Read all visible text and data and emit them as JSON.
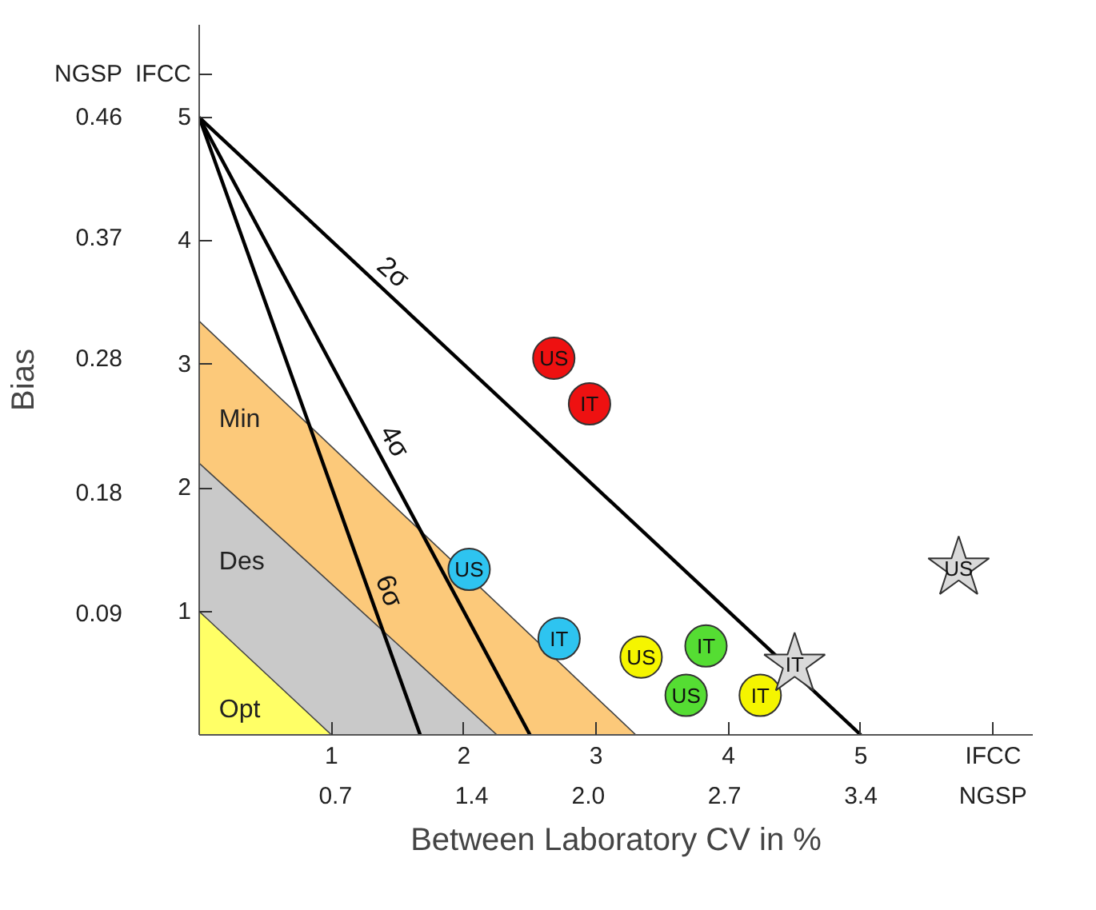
{
  "chart_data": {
    "type": "scatter",
    "xlabel": "Between Laboratory CV in %",
    "y2label": "Bias",
    "xlim": [
      0,
      6.3
    ],
    "ylim": [
      0,
      5.75
    ],
    "xticks": [
      1,
      2,
      3,
      4,
      5,
      {
        "value": 6,
        "label": "IFCC"
      }
    ],
    "x2lim": [
      0,
      4.284
    ],
    "x2ticks": [
      0.7,
      1.4,
      {
        "value": 2.0,
        "label": "2.0"
      },
      2.7,
      3.4,
      {
        "value": 4.08,
        "label": "NGSP"
      }
    ],
    "yticks": [
      1,
      2,
      3,
      4,
      5,
      {
        "value": 5.35,
        "label": "IFCC"
      }
    ],
    "y2lim": [
      0,
      0.529
    ],
    "y2ticks": [
      0.09,
      0.18,
      0.28,
      0.37,
      0.46,
      {
        "value": 0.492,
        "label": "NGSP"
      }
    ],
    "grid": false,
    "legend": false,
    "series": [
      {
        "type": "area",
        "name": "Min",
        "color": "#fcc97a",
        "x": [
          0,
          3.3
        ],
        "values": [
          3.35,
          0
        ]
      },
      {
        "type": "area",
        "name": "Des",
        "color": "#c9c9c9",
        "x": [
          0,
          2.25
        ],
        "values": [
          2.2,
          0
        ]
      },
      {
        "type": "area",
        "name": "Opt",
        "color": "#ffff66",
        "x": [
          0,
          1
        ],
        "values": [
          1,
          0
        ]
      },
      {
        "type": "line",
        "color": "#000000",
        "x": [
          0,
          5
        ],
        "values": [
          5,
          0
        ]
      },
      {
        "type": "line",
        "color": "#000000",
        "x": [
          0,
          2.5
        ],
        "values": [
          5,
          0
        ]
      },
      {
        "type": "line",
        "color": "#000000",
        "x": [
          0,
          1.67
        ],
        "values": [
          5,
          0
        ]
      },
      {
        "marker": "circle",
        "color": "#ee1111",
        "x": [
          2.68,
          2.95
        ],
        "values": [
          3.05,
          2.68
        ]
      },
      {
        "marker": "circle",
        "color": "#2ec4f0",
        "x": [
          2.04,
          2.72
        ],
        "values": [
          1.34,
          0.78
        ]
      },
      {
        "marker": "circle",
        "color": "#f5f500",
        "x": [
          3.34,
          4.24
        ],
        "values": [
          0.63,
          0.32
        ]
      },
      {
        "marker": "circle",
        "color": "#55dd33",
        "x": [
          3.83,
          3.68
        ],
        "values": [
          0.72,
          0.32
        ]
      },
      {
        "marker": "star",
        "color": "#d9d9d9",
        "x": [
          4.5,
          5.74
        ],
        "values": [
          0.57,
          1.35
        ]
      }
    ],
    "annotations": [
      {
        "text": "2σ",
        "x": 1.37,
        "y": 3.63
      },
      {
        "text": "4σ",
        "x": 1.35,
        "y": 2.3
      },
      {
        "text": "6σ",
        "x": 1.3,
        "y": 1.11
      },
      {
        "text": "US",
        "x": 2.68,
        "y": 3.05
      },
      {
        "text": "IT",
        "x": 2.95,
        "y": 2.68
      },
      {
        "text": "US",
        "x": 2.04,
        "y": 1.34
      },
      {
        "text": "IT",
        "x": 2.72,
        "y": 0.78
      },
      {
        "text": "US",
        "x": 3.34,
        "y": 0.63
      },
      {
        "text": "IT",
        "x": 4.24,
        "y": 0.32
      },
      {
        "text": "IT",
        "x": 3.83,
        "y": 0.72
      },
      {
        "text": "US",
        "x": 3.68,
        "y": 0.32
      },
      {
        "text": "IT",
        "x": 4.5,
        "y": 0.57
      },
      {
        "text": "US",
        "x": 5.74,
        "y": 1.35
      }
    ]
  }
}
